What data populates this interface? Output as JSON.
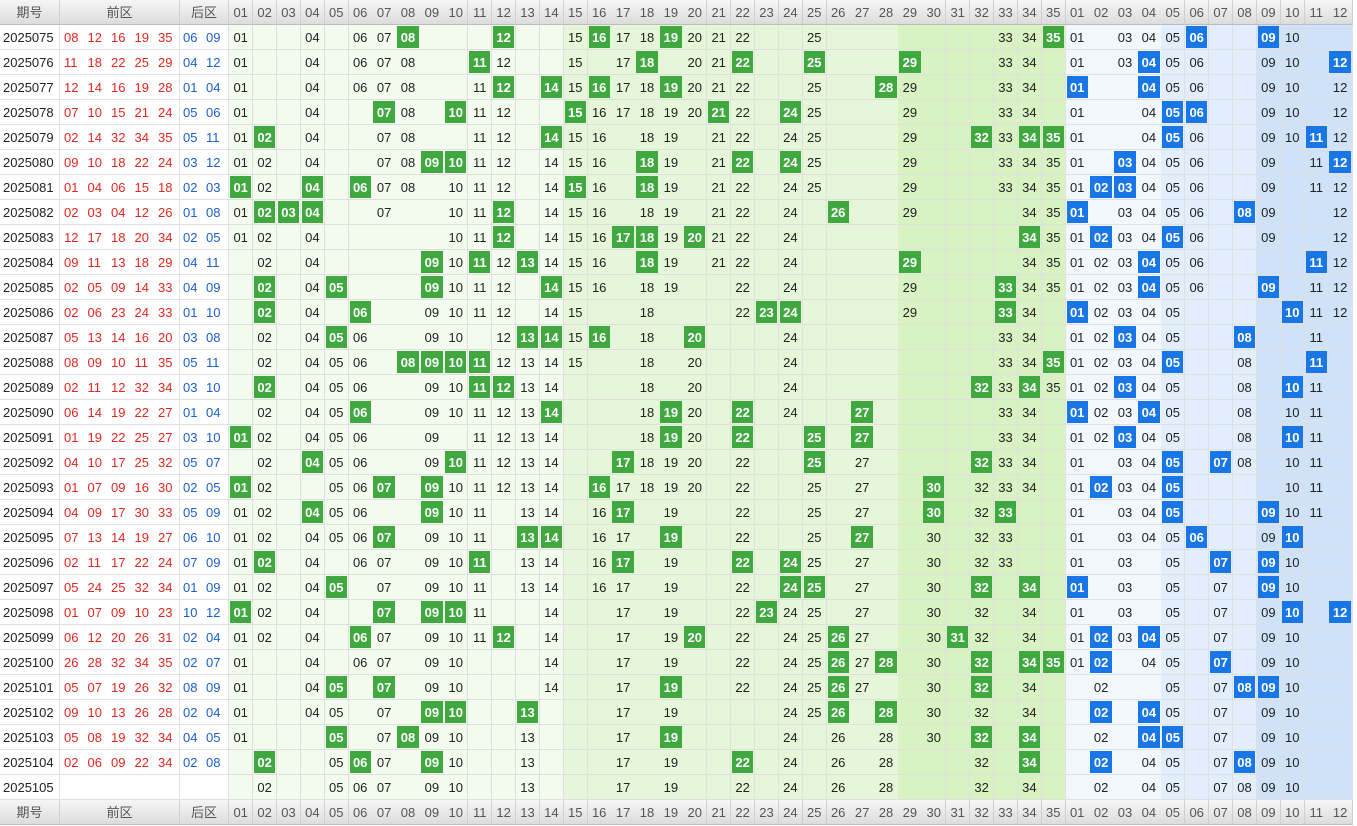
{
  "headers": {
    "issue": "期号",
    "front": "前区",
    "back": "后区"
  },
  "front_nums": [
    "01",
    "02",
    "03",
    "04",
    "05",
    "06",
    "07",
    "08",
    "09",
    "10",
    "11",
    "12",
    "13",
    "14",
    "15",
    "16",
    "17",
    "18",
    "19",
    "20",
    "21",
    "22",
    "23",
    "24",
    "25",
    "26",
    "27",
    "28",
    "29",
    "30",
    "31",
    "32",
    "33",
    "34",
    "35"
  ],
  "back_nums": [
    "01",
    "02",
    "03",
    "04",
    "05",
    "06",
    "07",
    "08",
    "09",
    "10",
    "11",
    "12"
  ],
  "colors": {
    "front_red": "#e2261f",
    "back_blue": "#1a5fd0",
    "hit_green": "#3fa83f",
    "hit_blue": "#1976e6",
    "zone_green_light": "#f3fbee",
    "zone_green_mid": "#e6f6d8",
    "zone_green_dark": "#d8f2c2",
    "zone_blue_light": "#f2f7fd",
    "zone_blue_mid": "#e2eefb",
    "zone_blue_dark": "#cfe2f8"
  },
  "rows": [
    {
      "issue": "2025075",
      "front": [
        "08",
        "12",
        "16",
        "19",
        "35"
      ],
      "back": [
        "06",
        "09"
      ],
      "fm": [
        "01",
        "04",
        "06",
        "07",
        "15",
        "17",
        "18",
        "20",
        "21",
        "22",
        "25",
        "33",
        "34"
      ],
      "bm": [
        "01",
        "03",
        "04",
        "05",
        "10"
      ]
    },
    {
      "issue": "2025076",
      "front": [
        "11",
        "18",
        "22",
        "25",
        "29"
      ],
      "back": [
        "04",
        "12"
      ],
      "fm": [
        "01",
        "04",
        "06",
        "07",
        "08",
        "12",
        "15",
        "17",
        "20",
        "21",
        "33",
        "34"
      ],
      "bm": [
        "01",
        "03",
        "05",
        "06",
        "09",
        "10"
      ]
    },
    {
      "issue": "2025077",
      "front": [
        "12",
        "14",
        "16",
        "19",
        "28"
      ],
      "back": [
        "01",
        "04"
      ],
      "fm": [
        "01",
        "04",
        "06",
        "07",
        "08",
        "11",
        "15",
        "17",
        "18",
        "20",
        "21",
        "22",
        "25",
        "29",
        "33",
        "34"
      ],
      "bm": [
        "05",
        "06",
        "09",
        "10",
        "12"
      ]
    },
    {
      "issue": "2025078",
      "front": [
        "07",
        "10",
        "15",
        "21",
        "24"
      ],
      "back": [
        "05",
        "06"
      ],
      "fm": [
        "01",
        "04",
        "08",
        "11",
        "12",
        "16",
        "17",
        "18",
        "19",
        "20",
        "22",
        "25",
        "29",
        "33",
        "34"
      ],
      "bm": [
        "01",
        "04",
        "09",
        "10",
        "12"
      ]
    },
    {
      "issue": "2025079",
      "front": [
        "02",
        "14",
        "32",
        "34",
        "35"
      ],
      "back": [
        "05",
        "11"
      ],
      "fm": [
        "01",
        "04",
        "07",
        "08",
        "11",
        "12",
        "15",
        "16",
        "18",
        "19",
        "21",
        "22",
        "24",
        "25",
        "29",
        "33"
      ],
      "bm": [
        "01",
        "04",
        "06",
        "09",
        "10",
        "12"
      ]
    },
    {
      "issue": "2025080",
      "front": [
        "09",
        "10",
        "18",
        "22",
        "24"
      ],
      "back": [
        "03",
        "12"
      ],
      "fm": [
        "01",
        "02",
        "04",
        "07",
        "08",
        "11",
        "12",
        "14",
        "15",
        "16",
        "19",
        "21",
        "25",
        "29",
        "33",
        "34",
        "35"
      ],
      "bm": [
        "01",
        "04",
        "05",
        "06",
        "09",
        "11"
      ]
    },
    {
      "issue": "2025081",
      "front": [
        "01",
        "04",
        "06",
        "15",
        "18"
      ],
      "back": [
        "02",
        "03"
      ],
      "fm": [
        "02",
        "07",
        "08",
        "10",
        "11",
        "12",
        "14",
        "16",
        "19",
        "21",
        "22",
        "24",
        "25",
        "29",
        "33",
        "34",
        "35"
      ],
      "bm": [
        "01",
        "04",
        "05",
        "06",
        "09",
        "11",
        "12"
      ]
    },
    {
      "issue": "2025082",
      "front": [
        "02",
        "03",
        "04",
        "12",
        "26"
      ],
      "back": [
        "01",
        "08"
      ],
      "fm": [
        "01",
        "07",
        "10",
        "11",
        "14",
        "15",
        "16",
        "18",
        "19",
        "21",
        "22",
        "24",
        "29",
        "34",
        "35"
      ],
      "bm": [
        "03",
        "04",
        "05",
        "06",
        "09",
        "12"
      ]
    },
    {
      "issue": "2025083",
      "front": [
        "12",
        "17",
        "18",
        "20",
        "34"
      ],
      "back": [
        "02",
        "05"
      ],
      "fm": [
        "01",
        "02",
        "04",
        "10",
        "11",
        "14",
        "15",
        "16",
        "19",
        "21",
        "22",
        "24",
        "35"
      ],
      "bm": [
        "01",
        "03",
        "04",
        "06",
        "09",
        "12"
      ]
    },
    {
      "issue": "2025084",
      "front": [
        "09",
        "11",
        "13",
        "18",
        "29"
      ],
      "back": [
        "04",
        "11"
      ],
      "fm": [
        "02",
        "04",
        "10",
        "12",
        "14",
        "15",
        "16",
        "19",
        "21",
        "22",
        "24",
        "34",
        "35"
      ],
      "bm": [
        "01",
        "02",
        "03",
        "05",
        "06",
        "12"
      ]
    },
    {
      "issue": "2025085",
      "front": [
        "02",
        "05",
        "09",
        "14",
        "33"
      ],
      "back": [
        "04",
        "09"
      ],
      "fm": [
        "04",
        "10",
        "11",
        "12",
        "15",
        "16",
        "18",
        "19",
        "22",
        "24",
        "29",
        "34",
        "35"
      ],
      "bm": [
        "01",
        "02",
        "03",
        "05",
        "06",
        "11",
        "12"
      ]
    },
    {
      "issue": "2025086",
      "front": [
        "02",
        "06",
        "23",
        "24",
        "33"
      ],
      "back": [
        "01",
        "10"
      ],
      "fm": [
        "04",
        "09",
        "10",
        "11",
        "12",
        "14",
        "15",
        "18",
        "22",
        "29",
        "34"
      ],
      "bm": [
        "02",
        "03",
        "04",
        "05",
        "11",
        "12"
      ]
    },
    {
      "issue": "2025087",
      "front": [
        "05",
        "13",
        "14",
        "16",
        "20"
      ],
      "back": [
        "03",
        "08"
      ],
      "fm": [
        "02",
        "04",
        "06",
        "09",
        "10",
        "12",
        "15",
        "18",
        "24",
        "33",
        "34"
      ],
      "bm": [
        "01",
        "02",
        "04",
        "05",
        "11"
      ]
    },
    {
      "issue": "2025088",
      "front": [
        "08",
        "09",
        "10",
        "11",
        "35"
      ],
      "back": [
        "05",
        "11"
      ],
      "fm": [
        "02",
        "04",
        "05",
        "06",
        "12",
        "13",
        "14",
        "15",
        "18",
        "20",
        "24",
        "33",
        "34"
      ],
      "bm": [
        "01",
        "02",
        "03",
        "04",
        "08"
      ]
    },
    {
      "issue": "2025089",
      "front": [
        "02",
        "11",
        "12",
        "32",
        "34"
      ],
      "back": [
        "03",
        "10"
      ],
      "fm": [
        "04",
        "05",
        "06",
        "09",
        "10",
        "13",
        "14",
        "18",
        "20",
        "24",
        "33",
        "35"
      ],
      "bm": [
        "01",
        "02",
        "04",
        "05",
        "08",
        "11"
      ]
    },
    {
      "issue": "2025090",
      "front": [
        "06",
        "14",
        "19",
        "22",
        "27"
      ],
      "back": [
        "01",
        "04"
      ],
      "fm": [
        "02",
        "04",
        "05",
        "09",
        "10",
        "11",
        "12",
        "13",
        "18",
        "20",
        "24",
        "33",
        "34"
      ],
      "bm": [
        "02",
        "03",
        "05",
        "08",
        "10",
        "11"
      ]
    },
    {
      "issue": "2025091",
      "front": [
        "01",
        "19",
        "22",
        "25",
        "27"
      ],
      "back": [
        "03",
        "10"
      ],
      "fm": [
        "02",
        "04",
        "05",
        "06",
        "09",
        "11",
        "12",
        "13",
        "14",
        "18",
        "20",
        "33",
        "34"
      ],
      "bm": [
        "01",
        "02",
        "04",
        "05",
        "08",
        "11"
      ]
    },
    {
      "issue": "2025092",
      "front": [
        "04",
        "10",
        "17",
        "25",
        "32"
      ],
      "back": [
        "05",
        "07"
      ],
      "fm": [
        "02",
        "05",
        "06",
        "09",
        "11",
        "12",
        "13",
        "14",
        "18",
        "19",
        "20",
        "22",
        "27",
        "33",
        "34"
      ],
      "bm": [
        "01",
        "03",
        "04",
        "08",
        "10",
        "11"
      ]
    },
    {
      "issue": "2025093",
      "front": [
        "01",
        "07",
        "09",
        "16",
        "30"
      ],
      "back": [
        "02",
        "05"
      ],
      "fm": [
        "02",
        "05",
        "06",
        "10",
        "11",
        "12",
        "13",
        "14",
        "17",
        "18",
        "19",
        "20",
        "22",
        "25",
        "27",
        "32",
        "33",
        "34"
      ],
      "bm": [
        "01",
        "03",
        "04",
        "10",
        "11"
      ]
    },
    {
      "issue": "2025094",
      "front": [
        "04",
        "09",
        "17",
        "30",
        "33"
      ],
      "back": [
        "05",
        "09"
      ],
      "fm": [
        "01",
        "02",
        "05",
        "06",
        "10",
        "11",
        "13",
        "14",
        "16",
        "19",
        "22",
        "25",
        "27",
        "32"
      ],
      "bm": [
        "01",
        "03",
        "04",
        "10",
        "11"
      ]
    },
    {
      "issue": "2025095",
      "front": [
        "07",
        "13",
        "14",
        "19",
        "27"
      ],
      "back": [
        "06",
        "10"
      ],
      "fm": [
        "01",
        "02",
        "04",
        "05",
        "06",
        "09",
        "10",
        "11",
        "16",
        "17",
        "22",
        "25",
        "30",
        "32",
        "33"
      ],
      "bm": [
        "01",
        "03",
        "04",
        "05",
        "09"
      ]
    },
    {
      "issue": "2025096",
      "front": [
        "02",
        "11",
        "17",
        "22",
        "24"
      ],
      "back": [
        "07",
        "09"
      ],
      "fm": [
        "01",
        "04",
        "06",
        "07",
        "09",
        "10",
        "13",
        "14",
        "16",
        "19",
        "25",
        "27",
        "30",
        "32",
        "33"
      ],
      "bm": [
        "01",
        "03",
        "05",
        "10"
      ]
    },
    {
      "issue": "2025097",
      "front": [
        "05",
        "24",
        "25",
        "32",
        "34"
      ],
      "back": [
        "01",
        "09"
      ],
      "fm": [
        "01",
        "02",
        "04",
        "07",
        "09",
        "10",
        "11",
        "13",
        "14",
        "16",
        "17",
        "19",
        "22",
        "27",
        "30"
      ],
      "bm": [
        "03",
        "05",
        "07",
        "10"
      ]
    },
    {
      "issue": "2025098",
      "front": [
        "01",
        "07",
        "09",
        "10",
        "23"
      ],
      "back": [
        "10",
        "12"
      ],
      "fm": [
        "02",
        "04",
        "11",
        "14",
        "17",
        "19",
        "22",
        "24",
        "25",
        "27",
        "30",
        "32",
        "34"
      ],
      "bm": [
        "01",
        "03",
        "05",
        "07",
        "09"
      ]
    },
    {
      "issue": "2025099",
      "front": [
        "06",
        "12",
        "20",
        "26",
        "31"
      ],
      "back": [
        "02",
        "04"
      ],
      "fm": [
        "01",
        "02",
        "04",
        "07",
        "09",
        "10",
        "11",
        "14",
        "17",
        "19",
        "22",
        "24",
        "25",
        "27",
        "30",
        "32",
        "34"
      ],
      "bm": [
        "01",
        "03",
        "05",
        "07",
        "09",
        "10"
      ]
    },
    {
      "issue": "2025100",
      "front": [
        "26",
        "28",
        "32",
        "34",
        "35"
      ],
      "back": [
        "02",
        "07"
      ],
      "fm": [
        "01",
        "04",
        "06",
        "07",
        "09",
        "10",
        "14",
        "17",
        "19",
        "22",
        "24",
        "25",
        "27",
        "30"
      ],
      "bm": [
        "01",
        "04",
        "05",
        "09",
        "10"
      ]
    },
    {
      "issue": "2025101",
      "front": [
        "05",
        "07",
        "19",
        "26",
        "32"
      ],
      "back": [
        "08",
        "09"
      ],
      "fm": [
        "01",
        "04",
        "09",
        "10",
        "14",
        "17",
        "22",
        "24",
        "25",
        "27",
        "30",
        "34"
      ],
      "bm": [
        "02",
        "05",
        "07",
        "10"
      ]
    },
    {
      "issue": "2025102",
      "front": [
        "09",
        "10",
        "13",
        "26",
        "28"
      ],
      "back": [
        "02",
        "04"
      ],
      "fm": [
        "01",
        "04",
        "05",
        "07",
        "17",
        "19",
        "24",
        "25",
        "30",
        "32",
        "34"
      ],
      "bm": [
        "05",
        "07",
        "09",
        "10"
      ]
    },
    {
      "issue": "2025103",
      "front": [
        "05",
        "08",
        "19",
        "32",
        "34"
      ],
      "back": [
        "04",
        "05"
      ],
      "fm": [
        "01",
        "07",
        "09",
        "10",
        "13",
        "17",
        "24",
        "26",
        "28",
        "30"
      ],
      "bm": [
        "02",
        "07",
        "09",
        "10"
      ]
    },
    {
      "issue": "2025104",
      "front": [
        "02",
        "06",
        "09",
        "22",
        "34"
      ],
      "back": [
        "02",
        "08"
      ],
      "fm": [
        "05",
        "07",
        "10",
        "13",
        "17",
        "19",
        "24",
        "26",
        "28",
        "32"
      ],
      "bm": [
        "04",
        "05",
        "07",
        "09",
        "10"
      ]
    },
    {
      "issue": "2025105",
      "front": [],
      "back": [],
      "fm": [
        "02",
        "05",
        "06",
        "07",
        "09",
        "10",
        "13",
        "17",
        "19",
        "22",
        "24",
        "26",
        "28",
        "32",
        "34"
      ],
      "bm": [
        "02",
        "04",
        "05",
        "07",
        "08",
        "09",
        "10"
      ]
    }
  ]
}
